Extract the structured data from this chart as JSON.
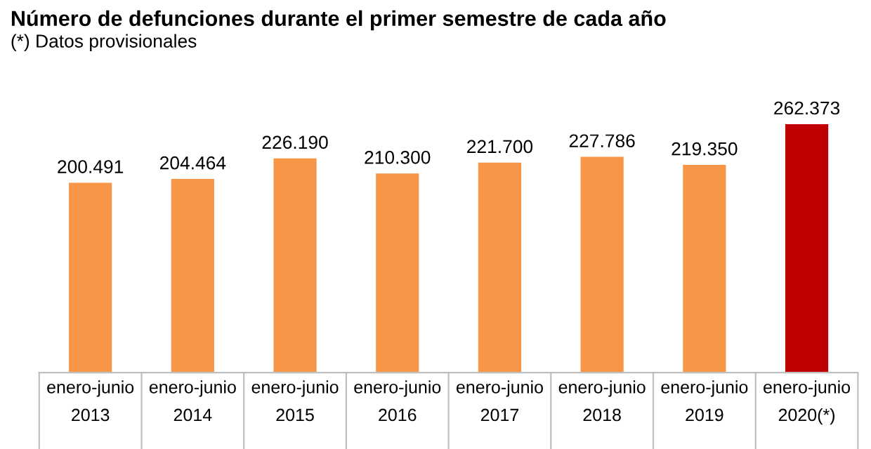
{
  "chart_data": {
    "type": "bar",
    "title": "Número de defunciones durante el primer semestre de cada año",
    "subtitle": "(*) Datos provisionales",
    "categories": [
      "enero-junio\n2013",
      "enero-junio\n2014",
      "enero-junio\n2015",
      "enero-junio\n2016",
      "enero-junio\n2017",
      "enero-junio\n2018",
      "enero-junio\n2019",
      "enero-junio\n2020(*)"
    ],
    "values": [
      200491,
      204464,
      226190,
      210300,
      221700,
      227786,
      219350,
      262373
    ],
    "colors": [
      "#f79646",
      "#f79646",
      "#f79646",
      "#f79646",
      "#f79646",
      "#f79646",
      "#f79646",
      "#c00000"
    ],
    "value_labels": [
      "200.491",
      "204.464",
      "226.190",
      "210.300",
      "221.700",
      "227.786",
      "219.350",
      "262.373"
    ],
    "grid": false,
    "legend": false
  }
}
